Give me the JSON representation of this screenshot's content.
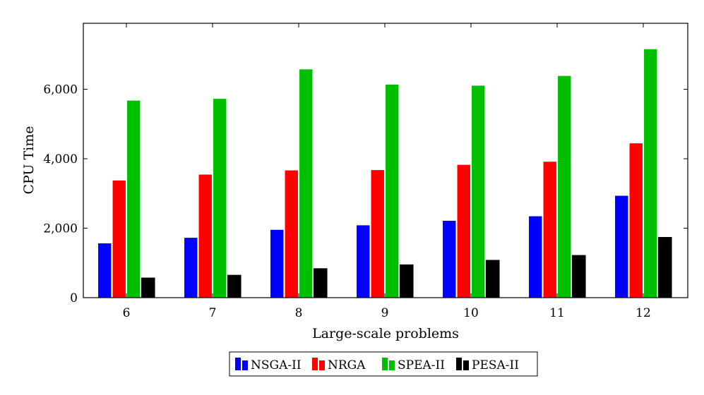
{
  "chart_data": {
    "type": "bar",
    "categories": [
      "6",
      "7",
      "8",
      "9",
      "10",
      "11",
      "12"
    ],
    "series": [
      {
        "name": "NSGA-II",
        "color": "#0000ff",
        "values": [
          1570,
          1730,
          1960,
          2090,
          2220,
          2350,
          2940
        ]
      },
      {
        "name": "NRGA",
        "color": "#ff0000",
        "values": [
          3380,
          3550,
          3670,
          3680,
          3830,
          3920,
          4450
        ]
      },
      {
        "name": "SPEA-II",
        "color": "#00bf00",
        "values": [
          5680,
          5730,
          6580,
          6140,
          6110,
          6390,
          7160
        ]
      },
      {
        "name": "PESA-II",
        "color": "#000000",
        "values": [
          570,
          650,
          840,
          950,
          1080,
          1220,
          1740
        ]
      }
    ],
    "xlabel": "Large-scale problems",
    "ylabel": "CPU Time",
    "ylim": [
      0,
      7900
    ],
    "yticks": [
      0,
      2000,
      4000,
      6000
    ],
    "ytick_labels": [
      "0",
      "2,000",
      "4,000",
      "6,000"
    ],
    "grid": false,
    "legend_position": "bottom-center"
  }
}
